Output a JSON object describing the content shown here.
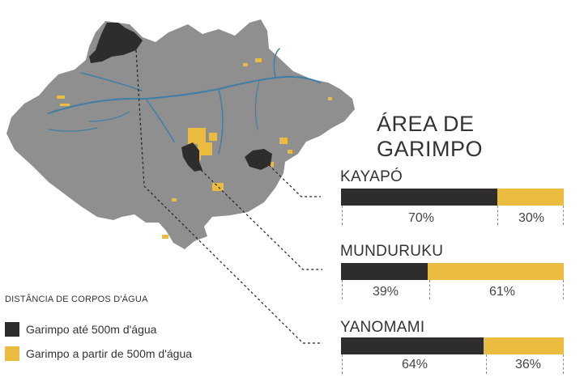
{
  "title": "ÁREA DE GARIMPO",
  "colors": {
    "land": "#8f8f90",
    "river": "#3f7fa6",
    "near_water": "#2f2c2d",
    "far_from_water": "#eabc3f"
  },
  "territories": [
    {
      "name": "KAYAPÓ",
      "near_pct": 70,
      "far_pct": 30,
      "near_label": "70%",
      "far_label": "30%"
    },
    {
      "name": "MUNDURUKU",
      "near_pct": 39,
      "far_pct": 61,
      "near_label": "39%",
      "far_label": "61%"
    },
    {
      "name": "YANOMAMI",
      "near_pct": 64,
      "far_pct": 36,
      "near_label": "64%",
      "far_label": "36%"
    }
  ],
  "legend": {
    "title": "DISTÂNCIA DE CORPOS D'ÁGUA",
    "items": [
      {
        "label": "Garimpo até 500m d'água",
        "color": "#2f2c2d"
      },
      {
        "label": "Garimpo a partir de 500m d'água",
        "color": "#eabc3f"
      }
    ]
  }
}
